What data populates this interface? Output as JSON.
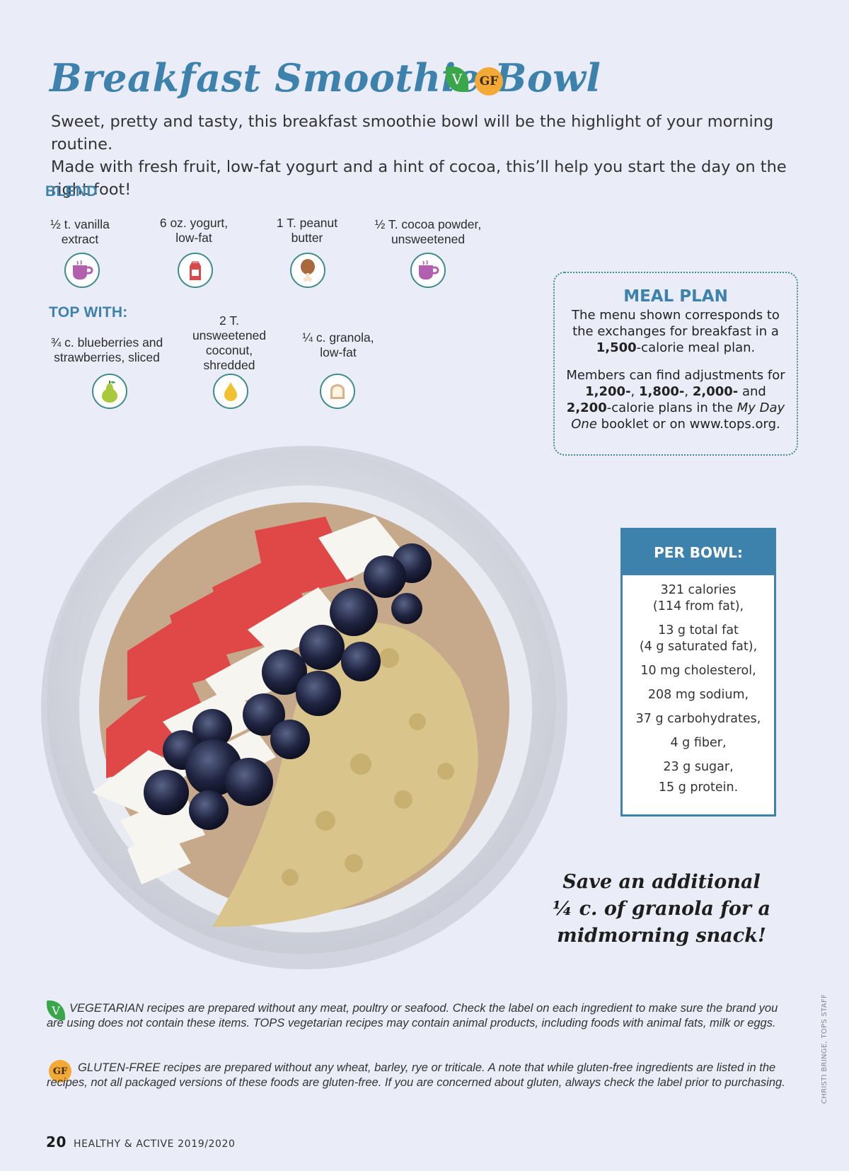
{
  "header": {
    "title": "Breakfast Smoothie Bowl",
    "badge_v": "V",
    "badge_gf": "GF",
    "intro_line1": "Sweet, pretty and tasty, this breakfast smoothie bowl will be the highlight of your morning routine.",
    "intro_line2": "Made with fresh fruit, low-fat yogurt and a hint of cocoa, this’ll help you start the day on the right foot!"
  },
  "blend": {
    "label": "BLEND",
    "items": [
      {
        "line1": "½ t. vanilla",
        "line2": "extract",
        "icon": "mug-icon"
      },
      {
        "line1": "6 oz. yogurt,",
        "line2": "low-fat",
        "icon": "milk-carton-icon"
      },
      {
        "line1": "1 T. peanut",
        "line2": "butter",
        "icon": "drumstick-icon"
      },
      {
        "line1": "½ T. cocoa powder,",
        "line2": "unsweetened",
        "icon": "mug-icon"
      }
    ]
  },
  "top_with": {
    "label": "TOP WITH:",
    "items": [
      {
        "line1": "¾ c. blueberries and",
        "line2": "strawberries, sliced",
        "icon": "pear-icon"
      },
      {
        "line1": "2 T.",
        "line2": "unsweetened",
        "line3": "coconut,",
        "line4": "shredded",
        "icon": "oil-drop-icon"
      },
      {
        "line1": "¼ c. granola,",
        "line2": "low-fat",
        "icon": "bread-icon"
      }
    ]
  },
  "meal_plan": {
    "title": "MEAL PLAN",
    "p1_a": "The menu shown corresponds to the exchanges for breakfast in a ",
    "p1_bold": "1,500",
    "p1_b": "-calorie meal plan.",
    "p2_a": "Members can find adjustments for ",
    "p2_b1": "1,200-",
    "p2_sep1": ", ",
    "p2_b2": "1,800-",
    "p2_sep2": ", ",
    "p2_b3": "2,000-",
    "p2_and": " and ",
    "p2_b4": "2,200",
    "p2_c": "-calorie plans in the ",
    "p2_italic": "My Day One",
    "p2_d": " booklet or on www.tops.org."
  },
  "per_bowl": {
    "title": "PER BOWL:",
    "calories": "321 calories",
    "calories_fat": "(114 from fat),",
    "total_fat": "13 g total fat",
    "sat_fat": "(4 g saturated fat),",
    "cholesterol": "10 mg cholesterol,",
    "sodium": "208 mg sodium,",
    "carbs": "37 g carbohydrates,",
    "fiber": "4 g fiber,",
    "sugar": "23 g sugar,",
    "protein": "15 g protein."
  },
  "callout": {
    "line1": "Save an additional",
    "line2": "¼ c. of granola for a",
    "line3": "midmorning snack!"
  },
  "notes": {
    "veg_badge": "V",
    "veg_text": "VEGETARIAN recipes are prepared without any meat, poultry or seafood. Check the label on each ingredient to make sure the brand you are using does not contain these items. TOPS vegetarian recipes may contain animal products, including foods with animal fats, milk or eggs.",
    "gf_badge": "GF",
    "gf_text": "GLUTEN-FREE recipes are prepared without any wheat, barley, rye or triticale. A note that while gluten-free ingredients are listed in the recipes, not all packaged versions of these foods are gluten-free. If you are concerned about gluten, always check the label prior to purchasing."
  },
  "credit": "CHRISTI BRINGE, TOPS STAFF",
  "footer": {
    "page_number": "20",
    "publication": "HEALTHY & ACTIVE 2019/2020"
  },
  "colors": {
    "accent_blue": "#3d82ad",
    "teal_border": "#3f8b8a",
    "veg_green": "#3aa64a",
    "gf_orange": "#f2a935",
    "page_bg": "#eaedf7"
  }
}
